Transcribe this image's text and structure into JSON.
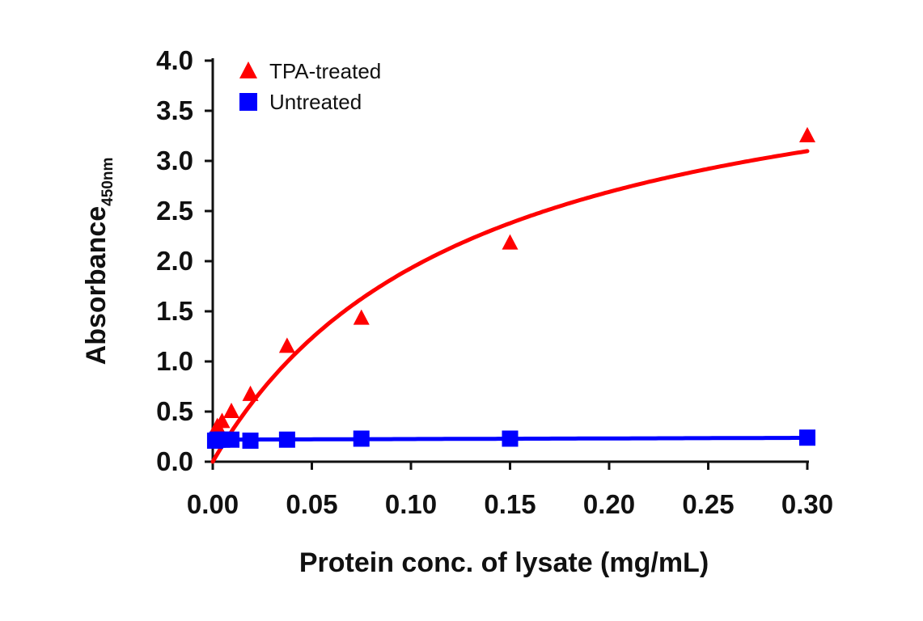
{
  "chart_data": {
    "type": "scatter",
    "xlabel": "Protein conc. of lysate (mg/mL)",
    "ylabel": "Absorbance",
    "ylabel_subscript": "450nm",
    "xlim": [
      0,
      0.3
    ],
    "ylim": [
      0,
      4.0
    ],
    "xticks": [
      0.0,
      0.05,
      0.1,
      0.15,
      0.2,
      0.25,
      0.3
    ],
    "xtick_labels": [
      "0.00",
      "0.05",
      "0.10",
      "0.15",
      "0.20",
      "0.25",
      "0.30"
    ],
    "yticks": [
      0.0,
      0.5,
      1.0,
      1.5,
      2.0,
      2.5,
      3.0,
      3.5,
      4.0
    ],
    "ytick_labels": [
      "0.0",
      "0.5",
      "1.0",
      "1.5",
      "2.0",
      "2.5",
      "3.0",
      "3.5",
      "4.0"
    ],
    "grid": false,
    "legend_position": "top-left",
    "series": [
      {
        "name": "TPA-treated",
        "marker": "triangle",
        "color": "#ff0000",
        "x": [
          0.0012,
          0.0023,
          0.0047,
          0.0094,
          0.019,
          0.0375,
          0.075,
          0.15,
          0.3
        ],
        "y": [
          0.22,
          0.35,
          0.4,
          0.5,
          0.67,
          1.15,
          1.43,
          2.18,
          3.25
        ],
        "fit": {
          "type": "saturation",
          "vmax": 4.44,
          "km": 0.13
        }
      },
      {
        "name": "Untreated",
        "marker": "square",
        "color": "#0000ff",
        "x": [
          0.0012,
          0.0023,
          0.0047,
          0.0094,
          0.019,
          0.0375,
          0.075,
          0.15,
          0.3
        ],
        "y": [
          0.21,
          0.22,
          0.22,
          0.22,
          0.21,
          0.22,
          0.23,
          0.23,
          0.24
        ],
        "fit": {
          "type": "linear",
          "intercept": 0.22,
          "slope": 0.06
        }
      }
    ]
  }
}
